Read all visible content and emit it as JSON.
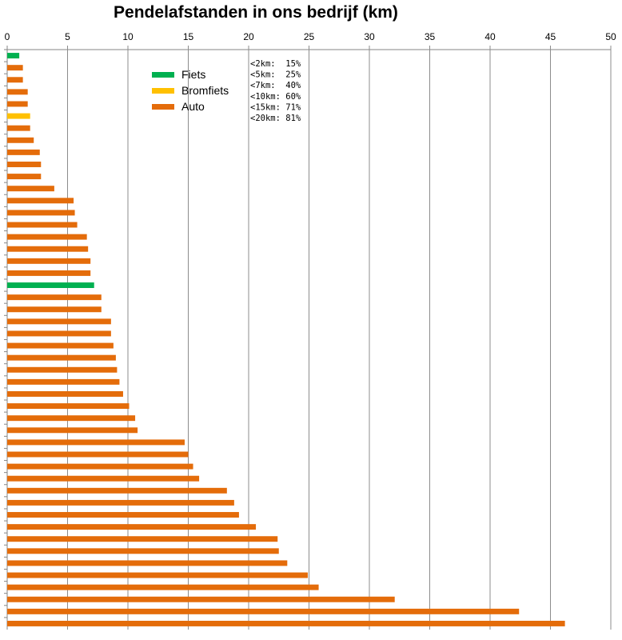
{
  "chart_data": {
    "type": "bar",
    "orientation": "horizontal",
    "title": "Pendelafstanden in ons bedrijf (km)",
    "xlabel": "",
    "ylabel": "",
    "xlim": [
      0,
      50
    ],
    "x_ticks": [
      0,
      5,
      10,
      15,
      20,
      25,
      30,
      35,
      40,
      45,
      50
    ],
    "grid": "vertical",
    "legend_position": "top-left",
    "legend": [
      {
        "name": "Fiets",
        "color": "#00b050"
      },
      {
        "name": "Bromfiets",
        "color": "#ffc000"
      },
      {
        "name": "Auto",
        "color": "#e46c0a"
      }
    ],
    "annotation_lines": [
      "<2km:  15%",
      "<5km:  25%",
      "<7km:  40%",
      "<10km: 60%",
      "<15km: 71%",
      "<20km: 81%"
    ],
    "bars": [
      {
        "value": 1.0,
        "mode": "Fiets"
      },
      {
        "value": 1.3,
        "mode": "Auto"
      },
      {
        "value": 1.3,
        "mode": "Auto"
      },
      {
        "value": 1.7,
        "mode": "Auto"
      },
      {
        "value": 1.7,
        "mode": "Auto"
      },
      {
        "value": 1.9,
        "mode": "Bromfiets"
      },
      {
        "value": 1.9,
        "mode": "Auto"
      },
      {
        "value": 2.2,
        "mode": "Auto"
      },
      {
        "value": 2.7,
        "mode": "Auto"
      },
      {
        "value": 2.8,
        "mode": "Auto"
      },
      {
        "value": 2.8,
        "mode": "Auto"
      },
      {
        "value": 3.9,
        "mode": "Auto"
      },
      {
        "value": 5.5,
        "mode": "Auto"
      },
      {
        "value": 5.6,
        "mode": "Auto"
      },
      {
        "value": 5.8,
        "mode": "Auto"
      },
      {
        "value": 6.6,
        "mode": "Auto"
      },
      {
        "value": 6.7,
        "mode": "Auto"
      },
      {
        "value": 6.9,
        "mode": "Auto"
      },
      {
        "value": 6.9,
        "mode": "Auto"
      },
      {
        "value": 7.2,
        "mode": "Fiets"
      },
      {
        "value": 7.8,
        "mode": "Auto"
      },
      {
        "value": 7.8,
        "mode": "Auto"
      },
      {
        "value": 8.6,
        "mode": "Auto"
      },
      {
        "value": 8.6,
        "mode": "Auto"
      },
      {
        "value": 8.8,
        "mode": "Auto"
      },
      {
        "value": 9.0,
        "mode": "Auto"
      },
      {
        "value": 9.1,
        "mode": "Auto"
      },
      {
        "value": 9.3,
        "mode": "Auto"
      },
      {
        "value": 9.6,
        "mode": "Auto"
      },
      {
        "value": 10.1,
        "mode": "Auto"
      },
      {
        "value": 10.6,
        "mode": "Auto"
      },
      {
        "value": 10.8,
        "mode": "Auto"
      },
      {
        "value": 14.7,
        "mode": "Auto"
      },
      {
        "value": 15.0,
        "mode": "Auto"
      },
      {
        "value": 15.4,
        "mode": "Auto"
      },
      {
        "value": 15.9,
        "mode": "Auto"
      },
      {
        "value": 18.2,
        "mode": "Auto"
      },
      {
        "value": 18.8,
        "mode": "Auto"
      },
      {
        "value": 19.2,
        "mode": "Auto"
      },
      {
        "value": 20.6,
        "mode": "Auto"
      },
      {
        "value": 22.4,
        "mode": "Auto"
      },
      {
        "value": 22.5,
        "mode": "Auto"
      },
      {
        "value": 23.2,
        "mode": "Auto"
      },
      {
        "value": 24.9,
        "mode": "Auto"
      },
      {
        "value": 25.8,
        "mode": "Auto"
      },
      {
        "value": 32.1,
        "mode": "Auto"
      },
      {
        "value": 42.4,
        "mode": "Auto"
      },
      {
        "value": 46.2,
        "mode": "Auto"
      }
    ]
  }
}
